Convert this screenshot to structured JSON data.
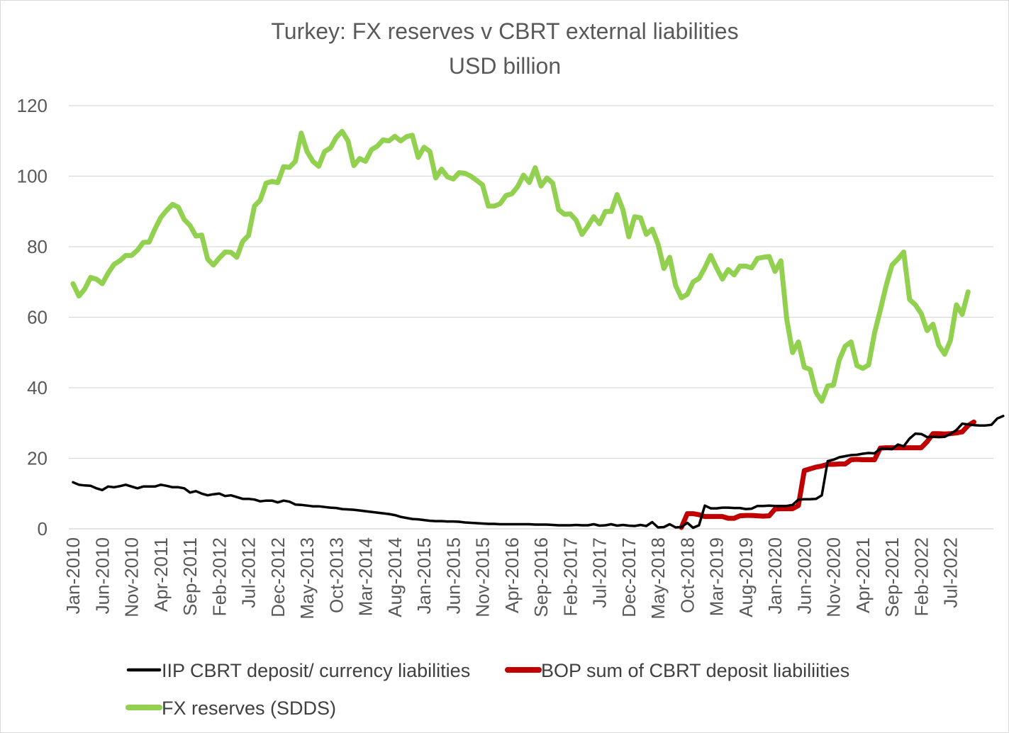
{
  "chart_data": {
    "type": "line",
    "title": "Turkey: FX reserves v CBRT external liabilities",
    "subtitle": "USD billion",
    "xlabel": "",
    "ylabel": "",
    "ylim": [
      0,
      120
    ],
    "yticks": [
      "0",
      "20",
      "40",
      "60",
      "80",
      "100",
      "120"
    ],
    "grid": true,
    "legend_position": "bottom",
    "x_start": "Jan-2010",
    "x_tick_labels": [
      "Jan-2010",
      "Jun-2010",
      "Nov-2010",
      "Apr-2011",
      "Sep-2011",
      "Feb-2012",
      "Jul-2012",
      "Dec-2012",
      "May-2013",
      "Oct-2013",
      "Mar-2014",
      "Aug-2014",
      "Jan-2015",
      "Jun-2015",
      "Nov-2015",
      "Apr-2016",
      "Sep-2016",
      "Feb-2017",
      "Jul-2017",
      "Dec-2017",
      "May-2018",
      "Oct-2018",
      "Mar-2019",
      "Aug-2019",
      "Jan-2020",
      "Jun-2020",
      "Nov-2020",
      "Apr-2021",
      "Sep-2021",
      "Feb-2022",
      "Jul-2022"
    ],
    "series": [
      {
        "name": "IIP CBRT deposit/ currency liabilities",
        "color": "#000000",
        "values": [
          13.2,
          12.5,
          12.3,
          12.2,
          11.5,
          11,
          12,
          11.8,
          12.1,
          12.5,
          12,
          11.5,
          12,
          12,
          12,
          12.5,
          12.2,
          11.8,
          11.8,
          11.5,
          10.3,
          10.7,
          10,
          9.5,
          9.8,
          10,
          9.3,
          9.5,
          9,
          8.5,
          8.5,
          8.3,
          7.8,
          8,
          8,
          7.5,
          8,
          7.7,
          6.9,
          6.8,
          6.6,
          6.4,
          6.4,
          6.2,
          6,
          5.9,
          5.6,
          5.5,
          5.4,
          5.2,
          5,
          4.8,
          4.6,
          4.4,
          4.2,
          3.9,
          3.4,
          3.1,
          2.8,
          2.7,
          2.5,
          2.3,
          2.2,
          2.2,
          2.1,
          2.1,
          2,
          1.8,
          1.7,
          1.6,
          1.5,
          1.4,
          1.4,
          1.3,
          1.3,
          1.3,
          1.3,
          1.3,
          1.3,
          1.2,
          1.2,
          1.2,
          1.1,
          1,
          1,
          1,
          1.1,
          1,
          1,
          1.3,
          0.9,
          1,
          1.3,
          0.9,
          1.1,
          0.9,
          0.8,
          1.1,
          0.8,
          1.9,
          0.4,
          0.5,
          1.3,
          0.4,
          0.5,
          1.7,
          0.3,
          1,
          6.6,
          5.8,
          5.8,
          6,
          6,
          5.9,
          5.9,
          5.6,
          5.7,
          6.5,
          6.5,
          6.6,
          6.5,
          6.5,
          6.5,
          6.8,
          8.3,
          8.4,
          8.4,
          8.5,
          9.5,
          19.2,
          19.6,
          20.3,
          20.6,
          20.9,
          21,
          21.3,
          21.5,
          21.4,
          22.7,
          22.7,
          22.6,
          23.9,
          23.4,
          25.6,
          27,
          26.9,
          26,
          26.1,
          26,
          26.1,
          26.9,
          28,
          29.8,
          29.6,
          29.4,
          29.3,
          29.3,
          29.5,
          31.3,
          32
        ]
      },
      {
        "name": "BOP sum of CBRT deposit liabiliities",
        "color": "#c00000",
        "start_index": 104,
        "values": [
          0.4,
          4.3,
          4.3,
          4,
          3.5,
          3.5,
          3.5,
          3.5,
          3,
          3,
          3.7,
          3.8,
          3.8,
          3.7,
          3.6,
          3.7,
          5.6,
          5.7,
          5.7,
          5.7,
          6.6,
          16.5,
          17,
          17.5,
          17.8,
          18.3,
          18.3,
          18.4,
          18.4,
          19.6,
          19.7,
          19.6,
          19.6,
          19.6,
          22.9,
          23,
          23,
          23,
          23,
          23,
          23,
          23,
          24.7,
          27,
          27,
          26.9,
          27,
          27.2,
          27.5,
          29.3,
          30.3
        ]
      },
      {
        "name": "FX reserves (SDDS)",
        "color": "#92d050",
        "values": [
          69.5,
          66,
          68,
          71.3,
          70.8,
          69.5,
          72.5,
          75,
          76,
          77.5,
          77.5,
          79,
          81.2,
          81.3,
          85,
          88.3,
          90.3,
          92,
          91.2,
          87.7,
          86,
          83,
          83.3,
          76.5,
          74.8,
          76.8,
          78.5,
          78.4,
          77,
          81.5,
          83.2,
          91.5,
          93.2,
          98,
          98.5,
          98.2,
          102.7,
          102.5,
          104.2,
          112.2,
          107,
          104.2,
          102.8,
          107,
          108,
          111,
          112.7,
          110,
          103,
          105,
          104.2,
          107.5,
          108.5,
          110.3,
          110,
          111.3,
          110,
          111.2,
          111.6,
          105.3,
          108.2,
          107,
          99.5,
          102,
          99.8,
          99.2,
          101,
          100.8,
          100,
          98.8,
          97.5,
          91.5,
          91.5,
          92.2,
          94.5,
          95,
          97,
          100.3,
          98.2,
          102.4,
          97.2,
          99.5,
          98,
          90.5,
          89.2,
          89.3,
          87.5,
          83.5,
          85.8,
          88.5,
          86.5,
          90,
          90,
          94.8,
          90.5,
          82.8,
          88.5,
          88.2,
          83.5,
          85,
          80.8,
          73.8,
          77,
          69,
          65.5,
          66.5,
          70,
          71,
          74,
          77.5,
          74,
          70.8,
          73.5,
          72,
          74.5,
          74.5,
          74,
          76.7,
          77,
          77.2,
          73,
          76,
          59.5,
          50,
          53,
          45.8,
          45.2,
          38.7,
          36.2,
          40.5,
          40.8,
          48,
          51.8,
          53,
          46.3,
          45.5,
          46.5,
          55.5,
          62,
          69,
          74.8,
          76.5,
          78.5,
          65,
          63.5,
          61,
          56.2,
          58,
          52,
          49.5,
          53.5,
          63.5,
          60.8,
          67.2
        ]
      }
    ]
  }
}
